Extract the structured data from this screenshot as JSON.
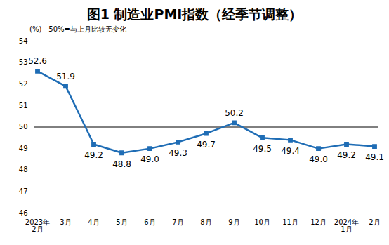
{
  "chart_data": {
    "type": "line",
    "title": "图1 制造业PMI指数（经季节调整）",
    "y_label": "(%)",
    "annotation": "50%=与上月比较无变化",
    "categories": [
      "2023年\n2月",
      "3月",
      "4月",
      "5月",
      "6月",
      "7月",
      "8月",
      "9月",
      "10月",
      "11月",
      "12月",
      "2024年\n1月",
      "2月"
    ],
    "values": [
      52.6,
      51.9,
      49.2,
      48.8,
      49.0,
      49.3,
      49.7,
      50.2,
      49.5,
      49.4,
      49.0,
      49.2,
      49.1
    ],
    "value_labels": [
      "52.6",
      "51.9",
      "49.2",
      "48.8",
      "49.0",
      "49.3",
      "49.7",
      "50.2",
      "49.5",
      "49.4",
      "49.0",
      "49.2",
      "49.1"
    ],
    "threshold": 50,
    "color": "#1f6db5",
    "marker": "square",
    "data_labels": true,
    "grid": false,
    "ylim": [
      46,
      54
    ],
    "yticks": [
      46,
      47,
      48,
      49,
      50,
      51,
      52,
      53,
      54
    ]
  }
}
